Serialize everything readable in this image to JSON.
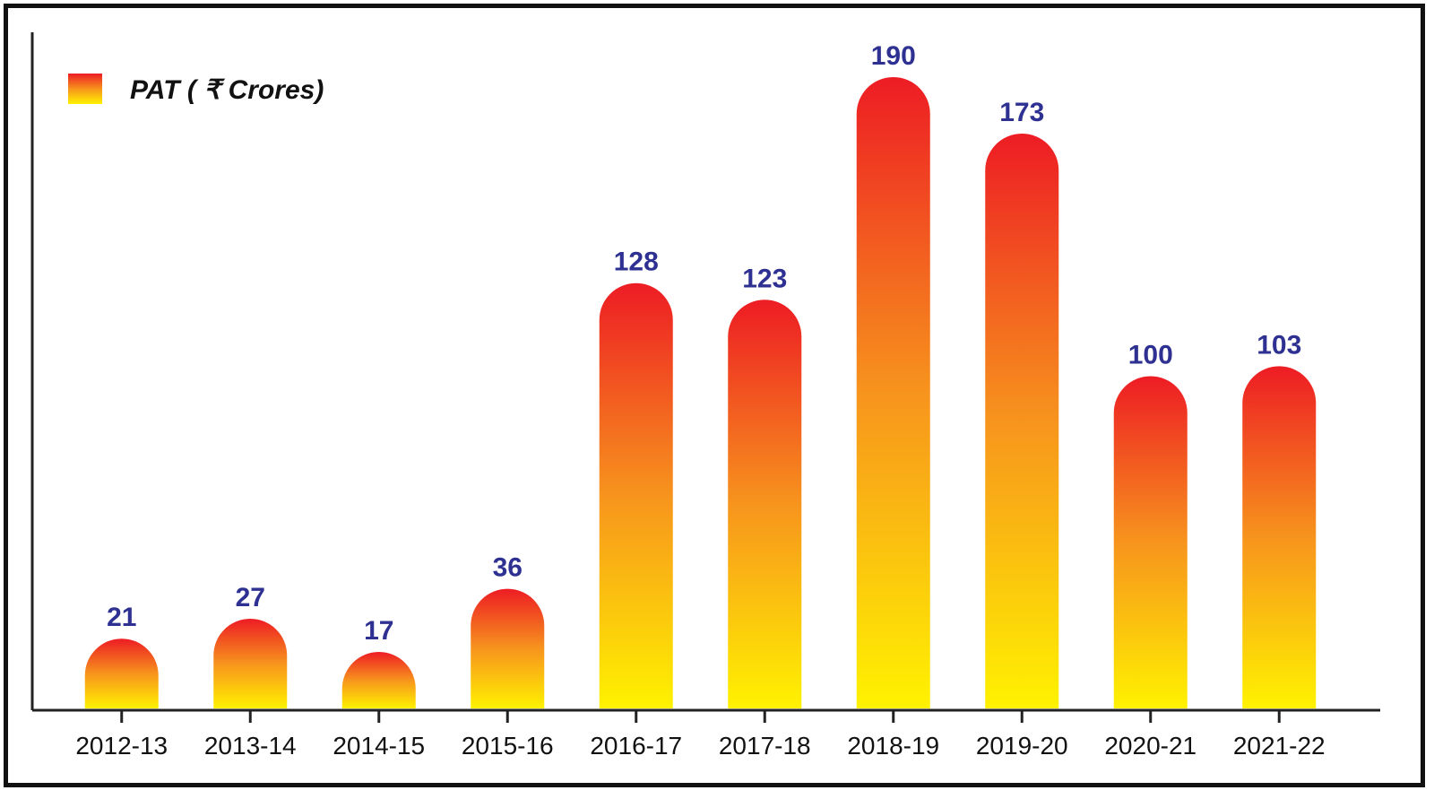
{
  "chart_data": {
    "type": "bar",
    "categories": [
      "2012-13",
      "2013-14",
      "2014-15",
      "2015-16",
      "2016-17",
      "2017-18",
      "2018-19",
      "2019-20",
      "2020-21",
      "2021-22"
    ],
    "series": [
      {
        "name": "PAT ( ₹  Crores)",
        "values": [
          21,
          27,
          17,
          36,
          128,
          123,
          190,
          173,
          100,
          103
        ]
      }
    ],
    "data_labels": [
      "21",
      "27",
      "17",
      "36",
      "128",
      "123",
      "190",
      "173",
      "100",
      "103"
    ],
    "title": "",
    "xlabel": "",
    "ylabel": "",
    "ylim": [
      0,
      190
    ],
    "grid": false,
    "legend_position": "top-left",
    "colors": {
      "bar_top": "#ed1c24",
      "bar_mid": "#f7941d",
      "bar_bottom": "#fff200",
      "value_label": "#2e3192",
      "axis": "#222222",
      "category_label": "#111111",
      "legend_text": "#111111"
    }
  }
}
